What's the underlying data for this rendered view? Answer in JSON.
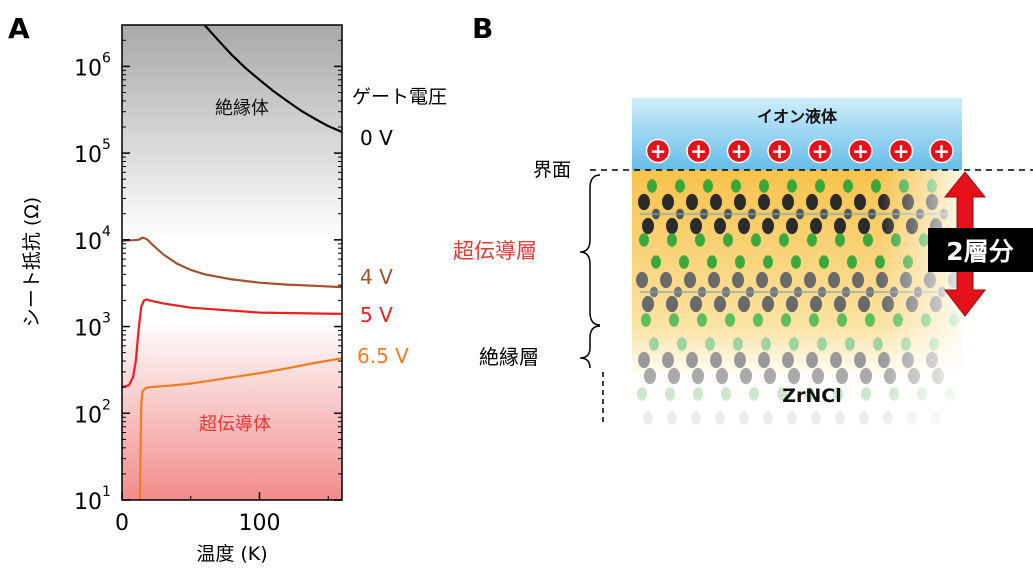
{
  "panel_a": {
    "letter": "A",
    "ylabel": "シート抵抗 (Ω)",
    "xlabel": "温度 (K)",
    "region_top": "絶縁体",
    "region_bottom": "超伝導体",
    "legend_title": "ゲート電圧",
    "x_ticks": [
      "0",
      "100"
    ],
    "y_tick_base": "10",
    "y_tick_exponents": [
      "1",
      "2",
      "3",
      "4",
      "5",
      "6"
    ],
    "curve_labels": [
      "0 V",
      "4 V",
      "5 V",
      "6.5 V"
    ]
  },
  "panel_b": {
    "letter": "B",
    "ionic_liquid": "イオン液体",
    "plus_sign": "+",
    "interface": "界面",
    "superconducting_layer": "超伝導層",
    "insulating_layer": "絶縁層",
    "material": "ZrNCl",
    "two_layers": "2層分"
  },
  "chart_data": {
    "type": "line",
    "xlabel": "温度 (K)",
    "ylabel": "シート抵抗 (Ω)",
    "xlim": [
      0,
      160
    ],
    "ylim": [
      10,
      3000000
    ],
    "yscale": "log",
    "legend_title": "ゲート電圧",
    "legend_placement": "right, labels next to curve ends",
    "series": [
      {
        "name": "0 V",
        "color": "#000000",
        "x": [
          60,
          70,
          80,
          90,
          100,
          110,
          120,
          130,
          140,
          150,
          160
        ],
        "y": [
          3000000,
          2000000,
          1350000,
          950000,
          700000,
          520000,
          400000,
          310000,
          250000,
          205000,
          175000
        ]
      },
      {
        "name": "4 V",
        "color": "#a0522d",
        "x": [
          0,
          8,
          12,
          15,
          18,
          22,
          30,
          40,
          50,
          60,
          80,
          100,
          120,
          140,
          160
        ],
        "y": [
          9800,
          9900,
          10000,
          10600,
          10200,
          8800,
          6800,
          5300,
          4500,
          4000,
          3500,
          3200,
          3050,
          2950,
          2850
        ]
      },
      {
        "name": "5 V",
        "color": "#e8201c",
        "x": [
          0,
          5,
          8,
          10,
          12,
          14,
          16,
          18,
          20,
          30,
          50,
          100,
          160
        ],
        "y": [
          200,
          210,
          260,
          400,
          900,
          1700,
          2000,
          2050,
          2000,
          1850,
          1650,
          1450,
          1400
        ]
      },
      {
        "name": "6.5 V",
        "color": "#f07c1e",
        "x": [
          13,
          13.5,
          14,
          15,
          17,
          20,
          30,
          50,
          80,
          100,
          120,
          140,
          160
        ],
        "y": [
          10,
          40,
          130,
          180,
          195,
          200,
          205,
          220,
          260,
          290,
          330,
          380,
          430
        ]
      }
    ],
    "colors": {
      "insulator_fill_top": "#a9a9a9",
      "superconductor_fill_bottom": "#f28b8b",
      "superconductor_label": "#e53935",
      "ionic_liquid": "#7ec8ef",
      "arrow": "#e6101b"
    }
  }
}
